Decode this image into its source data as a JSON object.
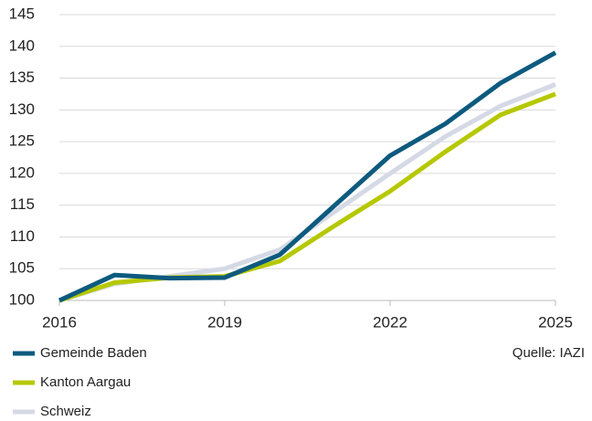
{
  "chart_data": {
    "type": "line",
    "x": [
      2016,
      2017,
      2018,
      2019,
      2020,
      2021,
      2022,
      2023,
      2024,
      2025
    ],
    "series": [
      {
        "name": "Gemeinde Baden",
        "color": "#0d5a7f",
        "values": [
          100,
          104,
          103.5,
          103.6,
          107.2,
          115,
          122.8,
          127.8,
          134.2,
          139
        ]
      },
      {
        "name": "Kanton Aargau",
        "color": "#b5c800",
        "values": [
          100,
          102.8,
          103.6,
          103.8,
          106.2,
          111.8,
          117.2,
          123.4,
          129.2,
          132.5
        ]
      },
      {
        "name": "Schweiz",
        "color": "#d5d9e6",
        "values": [
          100,
          102.6,
          103.8,
          105,
          108,
          114,
          120,
          125.8,
          130.6,
          134
        ]
      }
    ],
    "xlim": [
      2016,
      2025
    ],
    "xticks": [
      2016,
      2019,
      2022,
      2025
    ],
    "ylim": [
      100,
      145
    ],
    "yticks": [
      100,
      105,
      110,
      115,
      120,
      125,
      130,
      135,
      140,
      145
    ],
    "grid": true,
    "legend": "bottom-left",
    "annotation": "Quelle: IAZI"
  }
}
